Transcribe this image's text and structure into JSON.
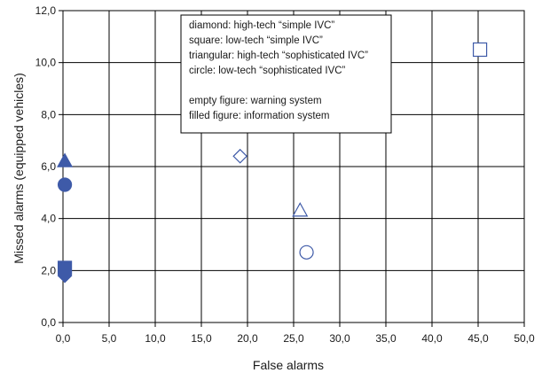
{
  "chart_data": {
    "type": "scatter",
    "xlabel": "False alarms",
    "ylabel": "Missed alarms (equipped vehicles)",
    "xlim": [
      0,
      50
    ],
    "ylim": [
      0,
      12
    ],
    "x_ticks": [
      "0,0",
      "5,0",
      "10,0",
      "15,0",
      "20,0",
      "25,0",
      "30,0",
      "35,0",
      "40,0",
      "45,0",
      "50,0"
    ],
    "y_ticks": [
      "0,0",
      "2,0",
      "4,0",
      "6,0",
      "8,0",
      "10,0",
      "12,0"
    ],
    "grid": true,
    "marker_color": "#3e5aa8",
    "legend_placement": "top-center",
    "legend_lines": [
      "diamond: high-tech “simple IVC”",
      "square: low-tech “simple IVC”",
      "triangular: high-tech “sophisticated IVC”",
      "circle: low-tech “sophisticated IVC”",
      "",
      "empty figure: warning system",
      "filled figure: information system"
    ],
    "points": [
      {
        "shape": "diamond",
        "filled": false,
        "x": 19.2,
        "y": 6.4
      },
      {
        "shape": "square",
        "filled": false,
        "x": 45.2,
        "y": 10.5
      },
      {
        "shape": "triangle",
        "filled": false,
        "x": 25.7,
        "y": 4.3
      },
      {
        "shape": "circle",
        "filled": false,
        "x": 26.4,
        "y": 2.7
      },
      {
        "shape": "diamond",
        "filled": true,
        "x": 0.2,
        "y": 1.8
      },
      {
        "shape": "square",
        "filled": true,
        "x": 0.2,
        "y": 2.1
      },
      {
        "shape": "triangle",
        "filled": true,
        "x": 0.2,
        "y": 6.2
      },
      {
        "shape": "circle",
        "filled": true,
        "x": 0.2,
        "y": 5.3
      }
    ]
  }
}
